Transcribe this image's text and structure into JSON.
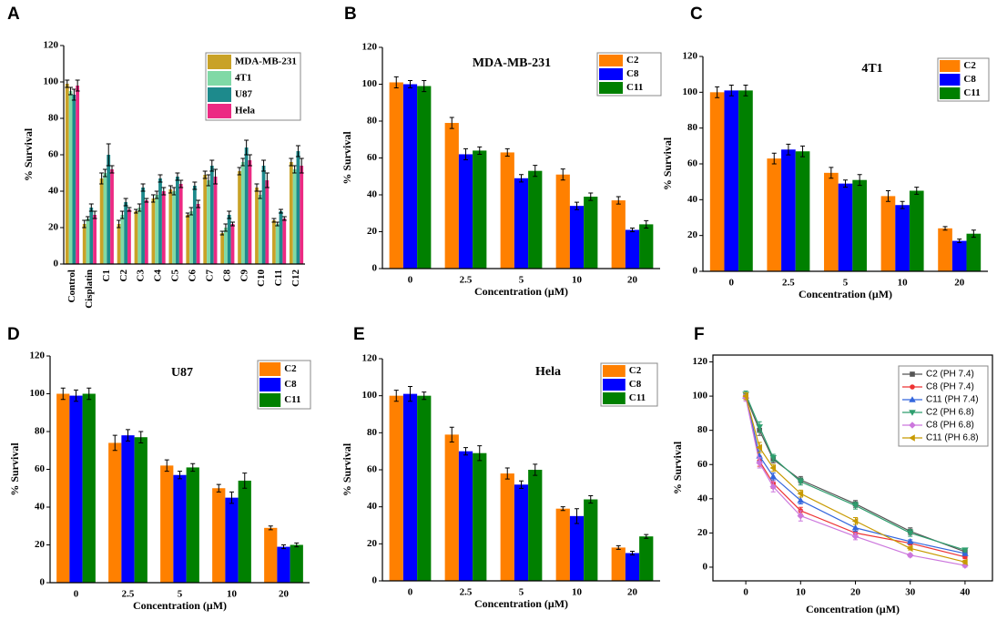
{
  "chart_data": [
    {
      "panel": "A",
      "type": "bar",
      "ylabel": "% Survival",
      "categories": [
        "Control",
        "Cisplatin",
        "C1",
        "C2",
        "C3",
        "C4",
        "C5",
        "C6",
        "C7",
        "C8",
        "C9",
        "C10",
        "C11",
        "C12"
      ],
      "series": [
        {
          "name": "MDA-MB-231",
          "color": "#c9a227",
          "values": [
            99,
            22,
            47,
            22,
            29,
            36,
            41,
            27,
            49,
            17,
            51,
            42,
            24,
            56
          ],
          "errors": [
            2,
            2,
            3,
            2,
            1,
            2,
            2,
            1,
            2,
            1,
            2,
            2,
            1,
            2
          ]
        },
        {
          "name": "4T1",
          "color": "#80d9a6",
          "values": [
            95,
            25,
            50,
            27,
            31,
            38,
            40,
            29,
            46,
            20,
            56,
            38,
            22,
            52
          ],
          "errors": [
            2,
            1,
            2,
            2,
            2,
            2,
            2,
            2,
            3,
            2,
            2,
            2,
            1,
            2
          ]
        },
        {
          "name": "U87",
          "color": "#1d8a8c",
          "values": [
            93,
            31,
            60,
            34,
            42,
            47,
            48,
            43,
            54,
            27,
            64,
            54,
            29,
            62
          ],
          "errors": [
            3,
            2,
            6,
            2,
            2,
            2,
            2,
            2,
            3,
            2,
            4,
            3,
            1,
            3
          ]
        },
        {
          "name": "Hela",
          "color": "#ec2a83",
          "values": [
            98,
            27,
            52,
            30,
            35,
            40,
            44,
            33,
            48,
            22,
            57,
            46,
            25,
            54
          ],
          "errors": [
            3,
            2,
            2,
            1,
            1,
            2,
            2,
            2,
            4,
            1,
            3,
            4,
            1,
            4
          ]
        }
      ],
      "ylim": [
        0,
        120
      ],
      "yticks": [
        0,
        20,
        40,
        60,
        80,
        100,
        120
      ],
      "legend": "upper right"
    },
    {
      "panel": "B",
      "type": "bar",
      "title": "MDA-MB-231",
      "xlabel": "Concentration (μM)",
      "ylabel": "% Survival",
      "categories": [
        "0",
        "2.5",
        "5",
        "10",
        "20"
      ],
      "series": [
        {
          "name": "C2",
          "color": "#ff8000",
          "values": [
            101,
            79,
            63,
            51,
            37
          ],
          "errors": [
            3,
            3,
            2,
            3,
            2
          ]
        },
        {
          "name": "C8",
          "color": "#0000ff",
          "values": [
            100,
            62,
            49,
            34,
            21
          ],
          "errors": [
            2,
            3,
            2,
            2,
            1
          ]
        },
        {
          "name": "C11",
          "color": "#008000",
          "values": [
            99,
            64,
            53,
            39,
            24
          ],
          "errors": [
            3,
            2,
            3,
            2,
            2
          ]
        }
      ],
      "ylim": [
        0,
        120
      ],
      "yticks": [
        0,
        20,
        40,
        60,
        80,
        100,
        120
      ],
      "legend": "upper right"
    },
    {
      "panel": "C",
      "type": "bar",
      "title": "4T1",
      "xlabel": "Concentration (μM)",
      "ylabel": "% Survival",
      "categories": [
        "0",
        "2.5",
        "5",
        "10",
        "20"
      ],
      "series": [
        {
          "name": "C2",
          "color": "#ff8000",
          "values": [
            100,
            63,
            55,
            42,
            24
          ],
          "errors": [
            3,
            3,
            3,
            3,
            1
          ]
        },
        {
          "name": "C8",
          "color": "#0000ff",
          "values": [
            101,
            68,
            49,
            37,
            17
          ],
          "errors": [
            3,
            3,
            2,
            2,
            1
          ]
        },
        {
          "name": "C11",
          "color": "#008000",
          "values": [
            101,
            67,
            51,
            45,
            21
          ],
          "errors": [
            3,
            3,
            3,
            2,
            2
          ]
        }
      ],
      "ylim": [
        0,
        120
      ],
      "yticks": [
        0,
        20,
        40,
        60,
        80,
        100,
        120
      ],
      "legend": "upper right"
    },
    {
      "panel": "D",
      "type": "bar",
      "title": "U87",
      "xlabel": "Concentration (μM)",
      "ylabel": "% Survival",
      "categories": [
        "0",
        "2.5",
        "5",
        "10",
        "20"
      ],
      "series": [
        {
          "name": "C2",
          "color": "#ff8000",
          "values": [
            100,
            74,
            62,
            50,
            29
          ],
          "errors": [
            3,
            4,
            3,
            2,
            1
          ]
        },
        {
          "name": "C8",
          "color": "#0000ff",
          "values": [
            99,
            78,
            57,
            45,
            19
          ],
          "errors": [
            3,
            3,
            2,
            3,
            1
          ]
        },
        {
          "name": "C11",
          "color": "#008000",
          "values": [
            100,
            77,
            61,
            54,
            20
          ],
          "errors": [
            3,
            3,
            2,
            4,
            1
          ]
        }
      ],
      "ylim": [
        0,
        120
      ],
      "yticks": [
        0,
        20,
        40,
        60,
        80,
        100,
        120
      ],
      "legend": "upper right"
    },
    {
      "panel": "E",
      "type": "bar",
      "title": "Hela",
      "xlabel": "Concentration (μM)",
      "ylabel": "% Survival",
      "categories": [
        "0",
        "2.5",
        "5",
        "10",
        "20"
      ],
      "series": [
        {
          "name": "C2",
          "color": "#ff8000",
          "values": [
            100,
            79,
            58,
            39,
            18
          ],
          "errors": [
            3,
            4,
            3,
            1,
            1
          ]
        },
        {
          "name": "C8",
          "color": "#0000ff",
          "values": [
            101,
            70,
            52,
            35,
            15
          ],
          "errors": [
            4,
            2,
            2,
            4,
            1
          ]
        },
        {
          "name": "C11",
          "color": "#008000",
          "values": [
            100,
            69,
            60,
            44,
            24
          ],
          "errors": [
            2,
            4,
            3,
            2,
            1
          ]
        }
      ],
      "ylim": [
        0,
        120
      ],
      "yticks": [
        0,
        20,
        40,
        60,
        80,
        100,
        120
      ],
      "legend": "upper right"
    },
    {
      "panel": "F",
      "type": "line",
      "xlabel": "Concentration (μM)",
      "ylabel": "% Survival",
      "x": [
        0,
        2.5,
        5,
        10,
        20,
        30,
        40
      ],
      "series": [
        {
          "name": "C2 (PH 7.4)",
          "color": "#555555",
          "marker": "square",
          "values": [
            100,
            80,
            63,
            51,
            37,
            21,
            9
          ],
          "errors": [
            2,
            3,
            2,
            2,
            2,
            2,
            1
          ]
        },
        {
          "name": "C8 (PH 7.4)",
          "color": "#ee3333",
          "marker": "circle",
          "values": [
            100,
            62,
            49,
            33,
            20,
            14,
            6
          ],
          "errors": [
            2,
            3,
            3,
            2,
            2,
            1,
            1
          ]
        },
        {
          "name": "C11 (PH 7.4)",
          "color": "#3366dd",
          "marker": "triangle-up",
          "values": [
            100,
            65,
            53,
            39,
            23,
            15,
            8
          ],
          "errors": [
            2,
            3,
            2,
            2,
            2,
            1,
            1
          ]
        },
        {
          "name": "C2 (PH 6.8)",
          "color": "#2e9e6e",
          "marker": "triangle-down",
          "values": [
            101,
            82,
            64,
            50,
            36,
            20,
            10
          ],
          "errors": [
            2,
            3,
            2,
            2,
            2,
            2,
            1
          ]
        },
        {
          "name": "C8 (PH 6.8)",
          "color": "#cc77dd",
          "marker": "diamond",
          "values": [
            99,
            61,
            47,
            30,
            18,
            7,
            1
          ],
          "errors": [
            2,
            3,
            3,
            3,
            2,
            1,
            1
          ]
        },
        {
          "name": "C11 (PH 6.8)",
          "color": "#c89a00",
          "marker": "triangle-left",
          "values": [
            100,
            70,
            58,
            43,
            27,
            11,
            3
          ],
          "errors": [
            2,
            3,
            2,
            2,
            2,
            1,
            1
          ]
        }
      ],
      "xlim": [
        -6,
        45
      ],
      "xticks": [
        0,
        10,
        20,
        30,
        40
      ],
      "ylim": [
        -8,
        124
      ],
      "yticks": [
        0,
        20,
        40,
        60,
        80,
        100,
        120
      ],
      "legend": "upper right"
    }
  ]
}
